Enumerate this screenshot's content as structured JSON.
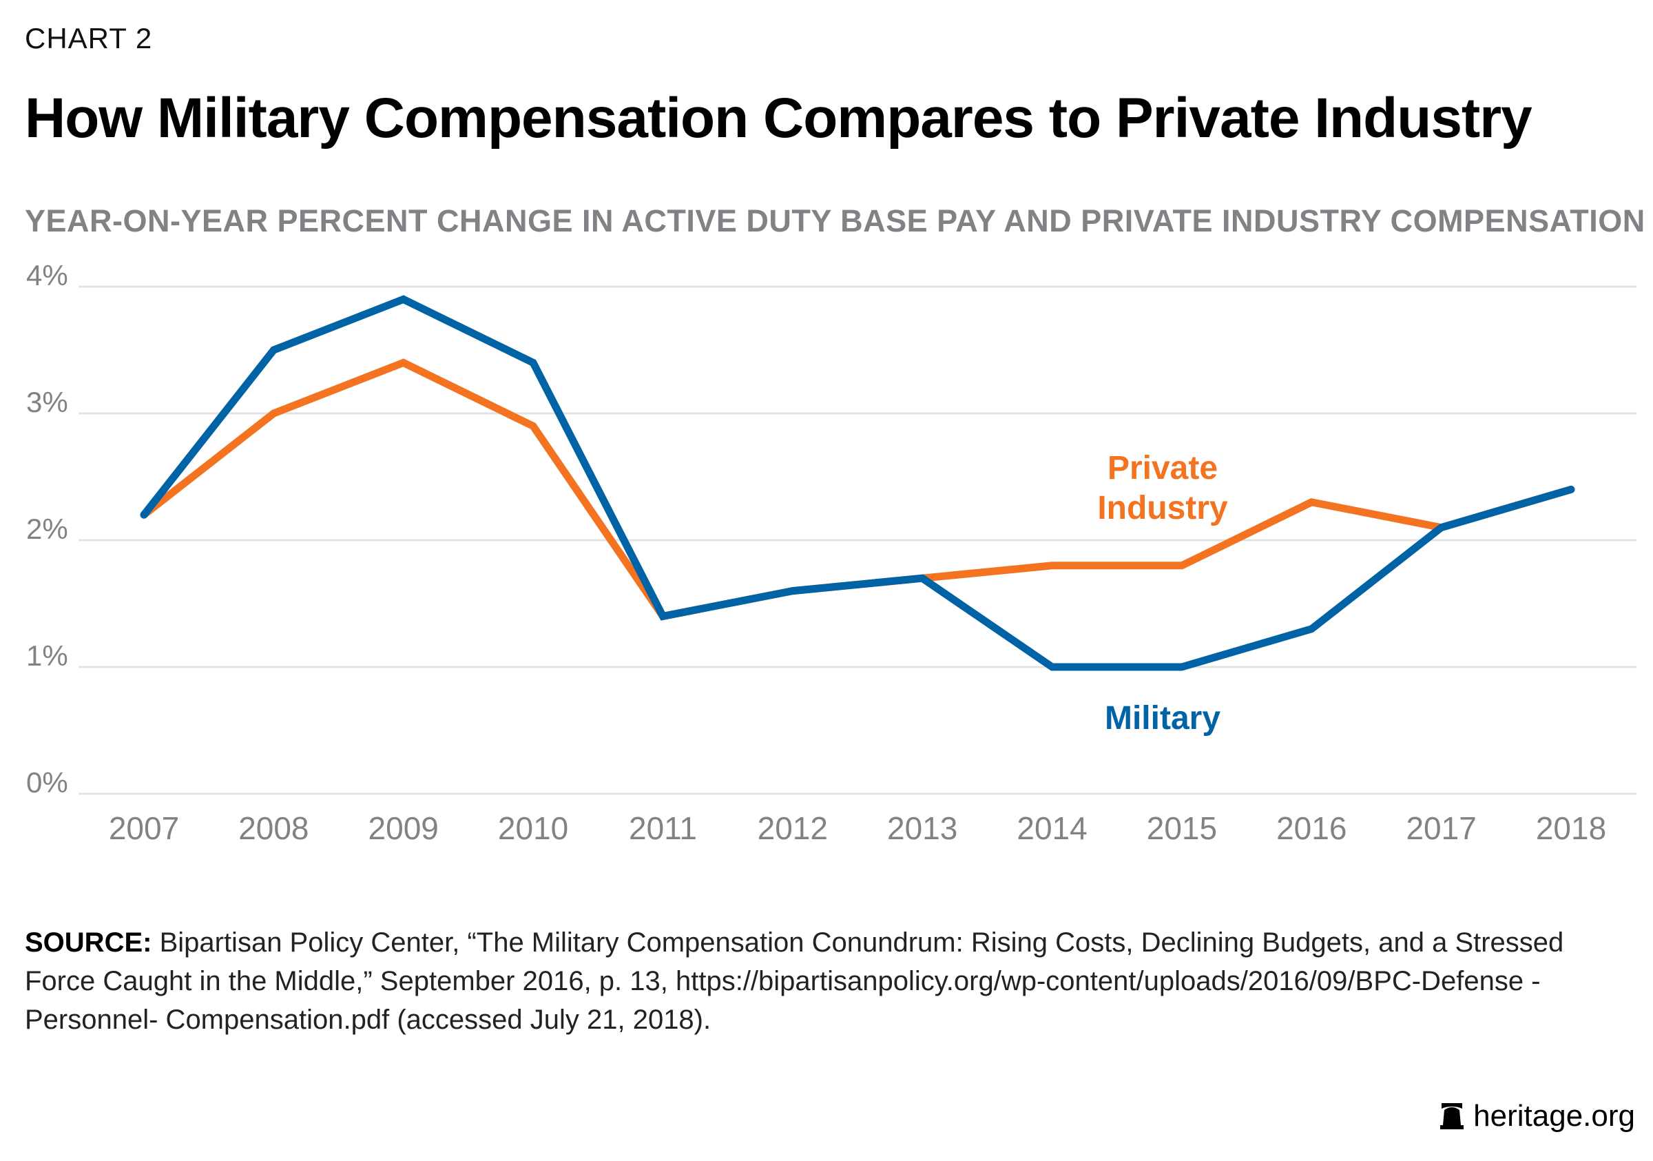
{
  "eyebrow": "CHART 2",
  "title": "How Military Compensation Compares to Private Industry",
  "subtitle": "YEAR-ON-YEAR PERCENT CHANGE IN ACTIVE DUTY BASE PAY AND PRIVATE INDUSTRY COMPENSATION",
  "source": {
    "label": "SOURCE:",
    "text": " Bipartisan Policy Center, “The Military Compensation Conundrum: Rising Costs, Declining Budgets, and a Stressed Force Caught in the Middle,” September 2016, p. 13, https://bipartisanpolicy.org/wp-content/uploads/2016/09/BPC-Defense -Personnel- Compensation.pdf (accessed July 21, 2018)."
  },
  "logo": {
    "text": "heritage.org",
    "icon": "liberty-bell-icon"
  },
  "colors": {
    "military": "#0063A6",
    "private": "#F37321",
    "grid": "#E3E3E3",
    "axis_text": "#808285"
  },
  "chart_data": {
    "type": "line",
    "x": [
      "2007",
      "2008",
      "2009",
      "2010",
      "2011",
      "2012",
      "2013",
      "2014",
      "2015",
      "2016",
      "2017",
      "2018"
    ],
    "ylim": [
      0,
      4
    ],
    "yticks": [
      "0%",
      "1%",
      "2%",
      "3%",
      "4%"
    ],
    "grid": true,
    "series": [
      {
        "name": "Private Industry",
        "label_lines": [
          "Private",
          "Industry"
        ],
        "values": [
          2.2,
          3.0,
          3.4,
          2.9,
          1.4,
          1.6,
          1.7,
          1.8,
          1.8,
          2.3,
          2.1,
          2.4
        ]
      },
      {
        "name": "Military",
        "label_lines": [
          "Military"
        ],
        "values": [
          2.2,
          3.5,
          3.9,
          3.4,
          1.4,
          1.6,
          1.7,
          1.0,
          1.0,
          1.3,
          2.1,
          2.4
        ]
      }
    ]
  }
}
